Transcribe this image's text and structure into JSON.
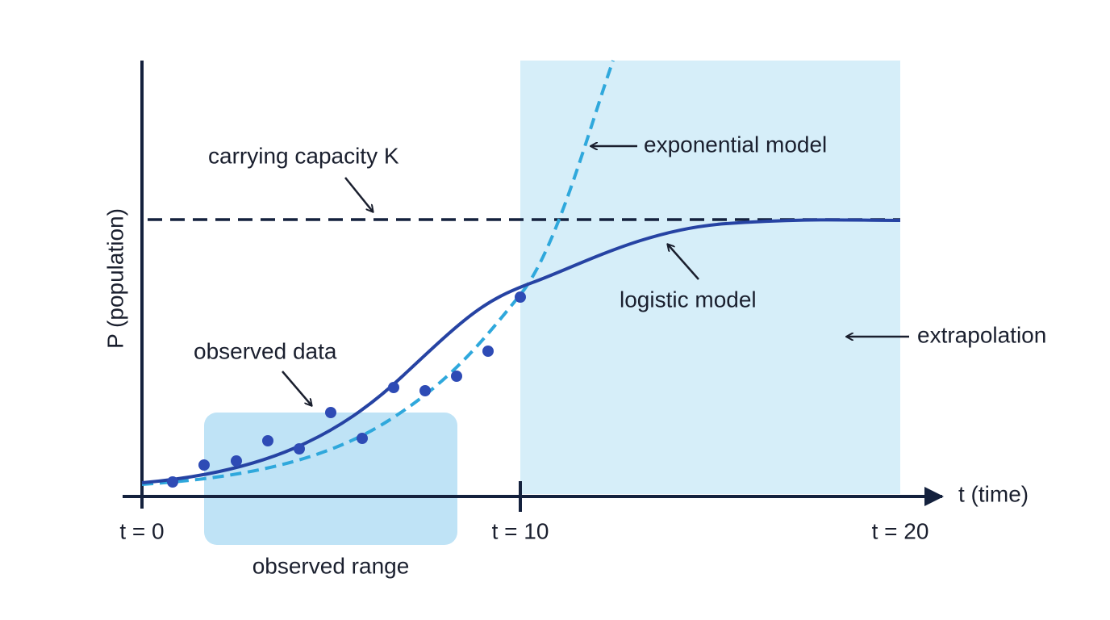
{
  "axes": {
    "y_label": "P (population)",
    "x_label": "t (time)",
    "x_marks": [
      "t = 0",
      "t = 10",
      "t = 20"
    ]
  },
  "annotations": {
    "carrying_capacity": "carrying capacity K",
    "exponential": "exponential model",
    "logistic": "logistic model",
    "extrapolation": "extrapolation",
    "observed_data": "observed data",
    "observed_range": "observed range"
  }
}
